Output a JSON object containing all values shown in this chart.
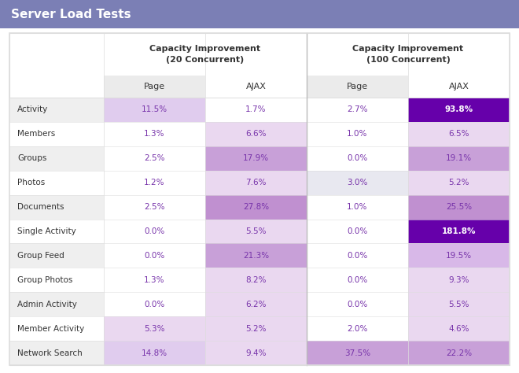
{
  "title": "Server Load Tests",
  "title_bg": "#7b7fb5",
  "title_color": "#ffffff",
  "col_headers_level1": [
    "Capacity Improvement\n(20 Concurrent)",
    "Capacity Improvement\n(100 Concurrent)"
  ],
  "col_headers_level2": [
    "Page",
    "AJAX",
    "Page",
    "AJAX"
  ],
  "rows": [
    {
      "label": "Activity",
      "c20p": "11.5%",
      "c20a": "1.7%",
      "c100p": "2.7%",
      "c100a": "93.8%",
      "bg": "even"
    },
    {
      "label": "Members",
      "c20p": "1.3%",
      "c20a": "6.6%",
      "c100p": "1.0%",
      "c100a": "6.5%",
      "bg": "odd"
    },
    {
      "label": "Groups",
      "c20p": "2.5%",
      "c20a": "17.9%",
      "c100p": "0.0%",
      "c100a": "19.1%",
      "bg": "even"
    },
    {
      "label": "Photos",
      "c20p": "1.2%",
      "c20a": "7.6%",
      "c100p": "3.0%",
      "c100a": "5.2%",
      "bg": "odd"
    },
    {
      "label": "Documents",
      "c20p": "2.5%",
      "c20a": "27.8%",
      "c100p": "1.0%",
      "c100a": "25.5%",
      "bg": "even"
    },
    {
      "label": "Single Activity",
      "c20p": "0.0%",
      "c20a": "5.5%",
      "c100p": "0.0%",
      "c100a": "181.8%",
      "bg": "odd"
    },
    {
      "label": "Group Feed",
      "c20p": "0.0%",
      "c20a": "21.3%",
      "c100p": "0.0%",
      "c100a": "19.5%",
      "bg": "even"
    },
    {
      "label": "Group Photos",
      "c20p": "1.3%",
      "c20a": "8.2%",
      "c100p": "0.0%",
      "c100a": "9.3%",
      "bg": "odd"
    },
    {
      "label": "Admin Activity",
      "c20p": "0.0%",
      "c20a": "6.2%",
      "c100p": "0.0%",
      "c100a": "5.5%",
      "bg": "even"
    },
    {
      "label": "Member Activity",
      "c20p": "5.3%",
      "c20a": "5.2%",
      "c100p": "2.0%",
      "c100a": "4.6%",
      "bg": "odd"
    },
    {
      "label": "Network Search",
      "c20p": "14.8%",
      "c20a": "9.4%",
      "c100p": "37.5%",
      "c100a": "22.2%",
      "bg": "even"
    }
  ],
  "cell_colors": {
    "Activity": [
      "light_purple",
      "white",
      "white",
      "dark_purple"
    ],
    "Members": [
      "white",
      "light_purple2",
      "white",
      "light_purple2"
    ],
    "Groups": [
      "white",
      "med_purple",
      "white",
      "med_purple"
    ],
    "Photos": [
      "white",
      "light_purple2",
      "light_gray2",
      "light_purple2"
    ],
    "Documents": [
      "white",
      "med_purple2",
      "white",
      "med_purple2"
    ],
    "Single Activity": [
      "white",
      "light_purple2",
      "white",
      "dark_purple"
    ],
    "Group Feed": [
      "white",
      "med_purple",
      "white",
      "light_purple3"
    ],
    "Group Photos": [
      "white",
      "light_purple2",
      "white",
      "light_purple2"
    ],
    "Admin Activity": [
      "white",
      "light_purple2",
      "white",
      "light_purple2"
    ],
    "Member Activity": [
      "light_purple2",
      "light_purple2",
      "white",
      "light_purple2"
    ],
    "Network Search": [
      "light_purple",
      "light_purple2",
      "med_purple3",
      "med_purple"
    ]
  },
  "color_map": {
    "dark_purple": "#6600aa",
    "med_purple": "#c8a0d8",
    "med_purple2": "#c090d0",
    "med_purple3": "#c8a0d8",
    "light_purple": "#e0ccee",
    "light_purple2": "#ead8f0",
    "light_purple3": "#d8b8e8",
    "light_gray": "#ebebeb",
    "light_gray2": "#e8e8f0",
    "white": "#ffffff"
  },
  "row_bg_even": "#efefef",
  "row_bg_odd": "#ffffff",
  "text_purple": "#7733aa",
  "text_dark": "#333333",
  "text_white": "#ffffff",
  "fig_bg": "#ffffff",
  "border_color": "#dddddd",
  "title_fontsize": 11,
  "header1_fontsize": 8,
  "header2_fontsize": 8,
  "cell_fontsize": 7.5,
  "label_fontsize": 7.5
}
